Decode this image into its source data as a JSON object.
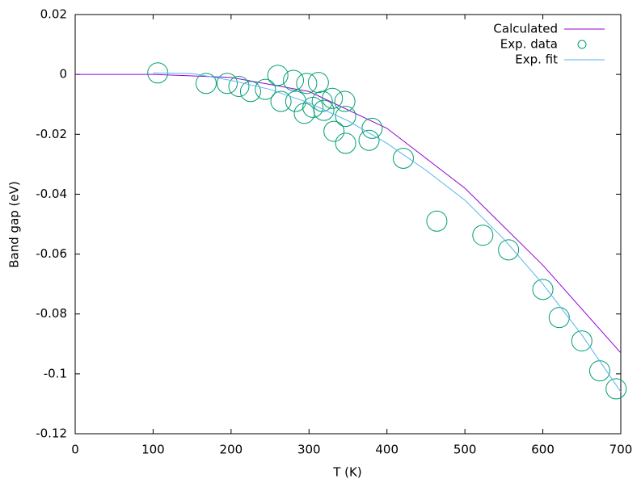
{
  "chart_data": {
    "type": "line",
    "xlabel": "T (K)",
    "ylabel": "Band gap (eV)",
    "xlim": [
      0,
      700
    ],
    "xticks": [
      0,
      100,
      200,
      300,
      400,
      500,
      600,
      700
    ],
    "ylim": [
      -0.12,
      0.02
    ],
    "yticks": [
      0.02,
      0,
      -0.02,
      -0.04,
      -0.06,
      -0.08,
      -0.1,
      -0.12
    ],
    "legend": "top-right",
    "series": [
      {
        "name": "Calculated",
        "type": "line",
        "color": "#9400d3",
        "x": [
          0,
          100,
          200,
          300,
          400,
          500,
          600,
          700
        ],
        "values": [
          0,
          0,
          -0.001,
          -0.0057,
          -0.018,
          -0.038,
          -0.0637,
          -0.093
        ]
      },
      {
        "name": "Exp. data",
        "type": "scatter",
        "color": "#009e73",
        "x": [
          106,
          168,
          195,
          210,
          225,
          244,
          260,
          264,
          280,
          283,
          294,
          297,
          305,
          312,
          317,
          319,
          330,
          332,
          346,
          347,
          347,
          377,
          381,
          421,
          464,
          523,
          556,
          600,
          621,
          650,
          673,
          694
        ],
        "values": [
          0.0005,
          -0.003,
          -0.003,
          -0.004,
          -0.0057,
          -0.005,
          -0.0003,
          -0.009,
          -0.002,
          -0.009,
          -0.013,
          -0.003,
          -0.011,
          -0.0027,
          -0.009,
          -0.012,
          -0.008,
          -0.019,
          -0.009,
          -0.023,
          -0.014,
          -0.022,
          -0.018,
          -0.028,
          -0.049,
          -0.0537,
          -0.0586,
          -0.0718,
          -0.0812,
          -0.089,
          -0.099,
          -0.105
        ]
      },
      {
        "name": "Exp. fit",
        "type": "line",
        "color": "#56b4e9",
        "x": [
          100,
          150,
          200,
          250,
          300,
          350,
          400,
          450,
          500,
          550,
          600,
          650,
          700
        ],
        "values": [
          0.0005,
          0.0003,
          -0.002,
          -0.005,
          -0.0095,
          -0.0155,
          -0.023,
          -0.032,
          -0.042,
          -0.055,
          -0.07,
          -0.087,
          -0.106
        ]
      }
    ]
  }
}
